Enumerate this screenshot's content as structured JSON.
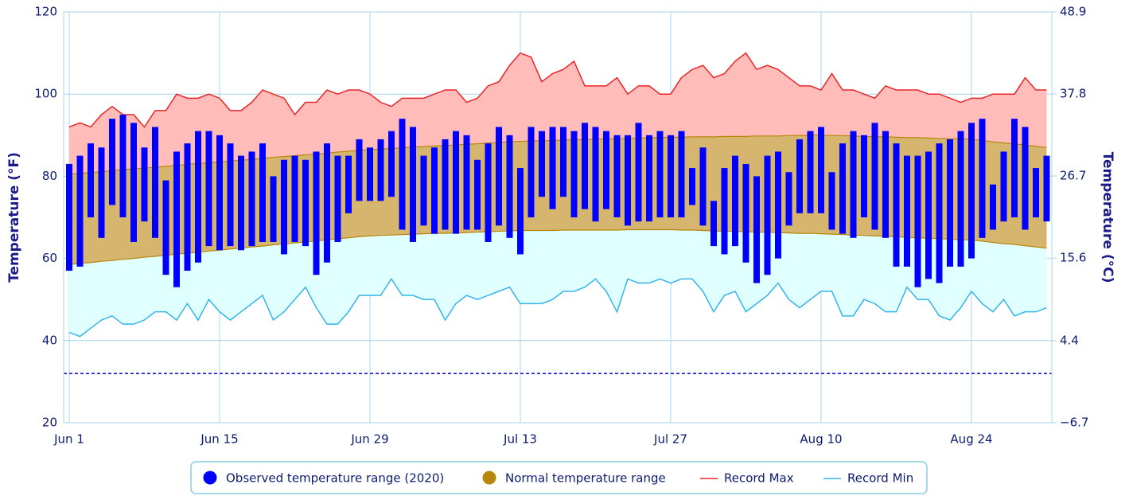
{
  "chart_data": {
    "type": "range",
    "y_label": "Temperature (°F)",
    "y2_label": "Temperature (°C)",
    "categories": [
      "Jun 1",
      null,
      null,
      null,
      null,
      null,
      null,
      null,
      null,
      null,
      null,
      null,
      null,
      null,
      "Jun 15",
      null,
      null,
      null,
      null,
      null,
      null,
      null,
      null,
      null,
      null,
      null,
      null,
      null,
      "Jun 29",
      null,
      null,
      null,
      null,
      null,
      null,
      null,
      null,
      null,
      null,
      null,
      null,
      null,
      "Jul 13",
      null,
      null,
      null,
      null,
      null,
      null,
      null,
      null,
      null,
      null,
      null,
      null,
      null,
      "Jul 27",
      null,
      null,
      null,
      null,
      null,
      null,
      null,
      null,
      null,
      null,
      null,
      null,
      null,
      "Aug 10",
      null,
      null,
      null,
      null,
      null,
      null,
      null,
      null,
      null,
      null,
      null,
      null,
      null,
      "Aug 24",
      null,
      null,
      null,
      null,
      null,
      null,
      null
    ],
    "ylim": [
      20,
      120
    ],
    "yticks": [
      20,
      40,
      60,
      80,
      100,
      120
    ],
    "y2lim": [
      -6.7,
      48.9
    ],
    "y2ticks": [
      {
        "value": -6.7,
        "label": "−6.7"
      },
      4.4,
      15.6,
      26.7,
      37.8,
      48.9
    ],
    "freezing_line": 32,
    "grid": true,
    "legend": "bottom",
    "series": [
      {
        "name": "Observed temperature range (2020)",
        "kind": "bars",
        "color": "#0000ff",
        "low": [
          57,
          58,
          70,
          65,
          73,
          70,
          64,
          69,
          65,
          56,
          53,
          57,
          59,
          63,
          62,
          63,
          62,
          63,
          64,
          64,
          61,
          64,
          63,
          56,
          59,
          64,
          71,
          74,
          74,
          74,
          75,
          67,
          64,
          68,
          66,
          67,
          66,
          67,
          67,
          64,
          68,
          65,
          61,
          70,
          75,
          72,
          75,
          70,
          72,
          69,
          72,
          70,
          68,
          69,
          69,
          70,
          70,
          70,
          73,
          68,
          63,
          61,
          63,
          59,
          54,
          56,
          60,
          68,
          71,
          71,
          71,
          67,
          66,
          65,
          70,
          67,
          65,
          58,
          58,
          53,
          55,
          54,
          58,
          58,
          60,
          65,
          67,
          69,
          70,
          67,
          70,
          69
        ],
        "high": [
          83,
          85,
          88,
          87,
          94,
          95,
          93,
          87,
          92,
          79,
          86,
          88,
          91,
          91,
          90,
          88,
          85,
          86,
          88,
          80,
          84,
          85,
          84,
          86,
          88,
          85,
          85,
          89,
          87,
          89,
          91,
          94,
          92,
          85,
          87,
          89,
          91,
          90,
          84,
          88,
          92,
          90,
          82,
          92,
          91,
          92,
          92,
          91,
          93,
          92,
          91,
          90,
          90,
          93,
          90,
          91,
          90,
          91,
          82,
          87,
          74,
          82,
          85,
          83,
          80,
          85,
          86,
          81,
          89,
          91,
          92,
          81,
          88,
          91,
          90,
          93,
          91,
          88,
          85,
          85,
          86,
          88,
          89,
          91,
          93,
          94,
          78,
          86,
          94,
          92,
          82,
          85
        ]
      },
      {
        "name": "Normal temperature range",
        "kind": "band",
        "color": "#b8860b",
        "fill": "#d6b66e",
        "low": [
          58.5,
          58.8,
          59.0,
          59.3,
          59.5,
          59.8,
          60.0,
          60.3,
          60.5,
          60.8,
          61.0,
          61.3,
          61.5,
          61.8,
          62.0,
          62.3,
          62.5,
          62.8,
          63.0,
          63.3,
          63.5,
          63.8,
          64.0,
          64.3,
          64.5,
          64.8,
          65.0,
          65.3,
          65.5,
          65.6,
          65.7,
          65.8,
          65.9,
          66.0,
          66.1,
          66.1,
          66.2,
          66.3,
          66.4,
          66.5,
          66.6,
          66.7,
          66.8,
          66.8,
          66.8,
          66.8,
          66.9,
          66.9,
          66.9,
          66.9,
          66.9,
          66.9,
          67.0,
          67.0,
          67.0,
          67.0,
          67.0,
          66.9,
          66.9,
          66.8,
          66.7,
          66.6,
          66.6,
          66.5,
          66.4,
          66.4,
          66.3,
          66.2,
          66.1,
          66.1,
          66.0,
          65.9,
          65.8,
          65.7,
          65.6,
          65.5,
          65.4,
          65.3,
          65.1,
          65.0,
          64.9,
          64.8,
          64.7,
          64.6,
          64.5,
          64.2,
          63.9,
          63.6,
          63.4,
          63.1,
          62.8,
          62.5
        ],
        "high": [
          80.5,
          80.7,
          80.9,
          81.1,
          81.4,
          81.6,
          81.8,
          82.0,
          82.2,
          82.4,
          82.6,
          82.9,
          83.1,
          83.3,
          83.5,
          83.7,
          83.9,
          84.1,
          84.4,
          84.6,
          84.8,
          85.0,
          85.2,
          85.4,
          85.6,
          85.9,
          86.1,
          86.3,
          86.5,
          86.6,
          86.8,
          86.9,
          87.1,
          87.2,
          87.4,
          87.5,
          87.6,
          87.8,
          87.9,
          88.1,
          88.2,
          88.4,
          88.5,
          88.6,
          88.6,
          88.7,
          88.8,
          88.9,
          88.9,
          89.0,
          89.1,
          89.1,
          89.2,
          89.3,
          89.4,
          89.4,
          89.5,
          89.5,
          89.6,
          89.6,
          89.6,
          89.7,
          89.7,
          89.7,
          89.8,
          89.8,
          89.8,
          89.9,
          89.9,
          90.0,
          90.0,
          89.9,
          89.9,
          89.8,
          89.7,
          89.6,
          89.6,
          89.5,
          89.4,
          89.4,
          89.3,
          89.2,
          89.1,
          89.1,
          89.0,
          88.7,
          88.4,
          88.1,
          87.9,
          87.6,
          87.3,
          87.0
        ]
      },
      {
        "name": "Record Max",
        "kind": "line",
        "color": "#e8262a",
        "fill": "#ffbcb8",
        "values": [
          92,
          93,
          92,
          95,
          97,
          95,
          95,
          92,
          96,
          96,
          100,
          99,
          99,
          100,
          99,
          96,
          96,
          98,
          101,
          100,
          99,
          95,
          98,
          98,
          101,
          100,
          101,
          101,
          100,
          98,
          97,
          99,
          99,
          99,
          100,
          101,
          101,
          98,
          99,
          102,
          103,
          107,
          110,
          109,
          103,
          105,
          106,
          108,
          102,
          102,
          102,
          104,
          100,
          102,
          102,
          100,
          100,
          104,
          106,
          107,
          104,
          105,
          108,
          110,
          106,
          107,
          106,
          104,
          102,
          102,
          101,
          105,
          101,
          101,
          100,
          99,
          102,
          101,
          101,
          101,
          100,
          100,
          99,
          98,
          99,
          99,
          100,
          100,
          100,
          104,
          101,
          101
        ]
      },
      {
        "name": "Record Min",
        "kind": "line",
        "color": "#34b4eb",
        "fill": "#e0ffff",
        "values": [
          42,
          41,
          43,
          45,
          46,
          44,
          44,
          45,
          47,
          47,
          45,
          49,
          45,
          50,
          47,
          45,
          47,
          49,
          51,
          45,
          47,
          50,
          53,
          48,
          44,
          44,
          47,
          51,
          51,
          51,
          55,
          51,
          51,
          50,
          50,
          45,
          49,
          51,
          50,
          51,
          52,
          53,
          49,
          49,
          49,
          50,
          52,
          52,
          53,
          55,
          52,
          47,
          55,
          54,
          54,
          55,
          54,
          55,
          55,
          52,
          47,
          51,
          52,
          47,
          49,
          51,
          54,
          50,
          48,
          50,
          52,
          52,
          46,
          46,
          50,
          49,
          47,
          47,
          53,
          50,
          50,
          46,
          45,
          48,
          52,
          49,
          47,
          50,
          46,
          47,
          47,
          48
        ]
      }
    ]
  }
}
